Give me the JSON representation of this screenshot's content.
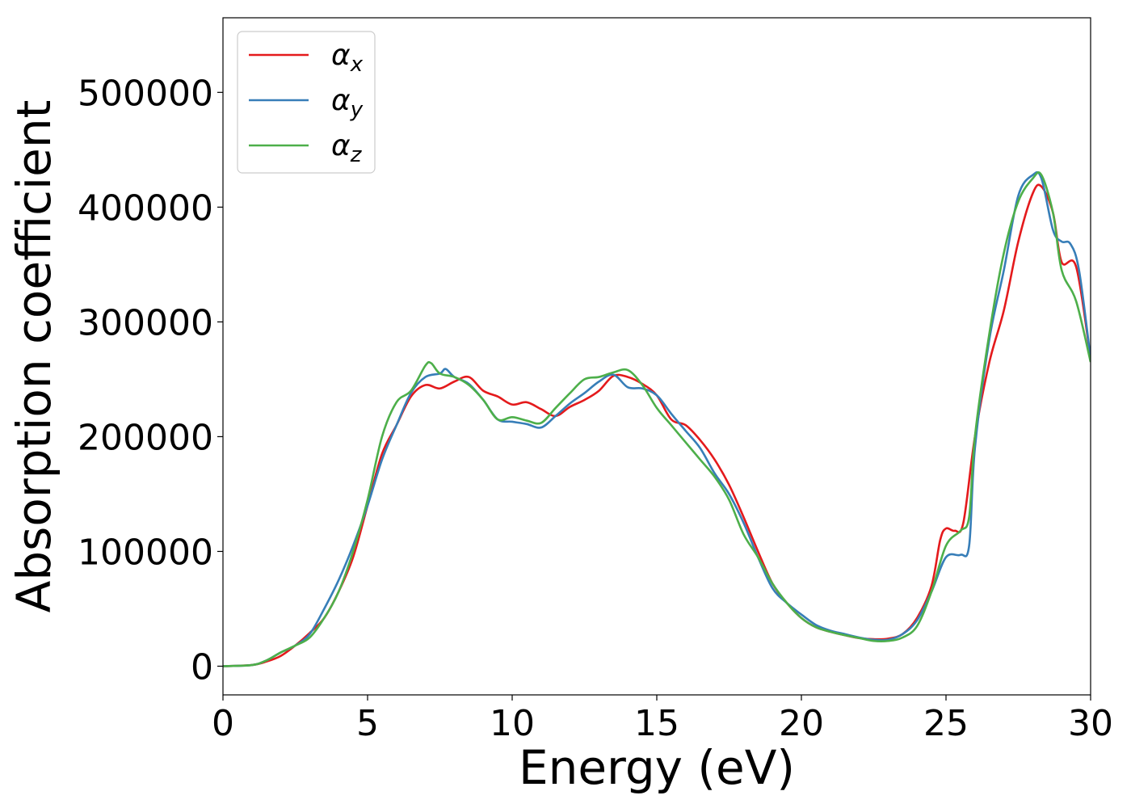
{
  "chart_data": {
    "type": "line",
    "xlabel": "Energy (eV)",
    "ylabel": "Absorption coefficient",
    "xlim": [
      0,
      30
    ],
    "ylim": [
      -25000,
      565000
    ],
    "xticks": [
      0,
      5,
      10,
      15,
      20,
      25,
      30
    ],
    "yticks": [
      0,
      100000,
      200000,
      300000,
      400000,
      500000
    ],
    "grid": false,
    "legend_position": "top-left",
    "series": [
      {
        "name": "x",
        "color": "#e41a1c",
        "points": [
          [
            0,
            0
          ],
          [
            1,
            1000
          ],
          [
            1.5,
            4000
          ],
          [
            2,
            9000
          ],
          [
            2.5,
            18000
          ],
          [
            3,
            29000
          ],
          [
            3.5,
            42000
          ],
          [
            4,
            65000
          ],
          [
            4.5,
            95000
          ],
          [
            5,
            140000
          ],
          [
            5.5,
            185000
          ],
          [
            6,
            210000
          ],
          [
            6.5,
            235000
          ],
          [
            7,
            245000
          ],
          [
            7.5,
            242000
          ],
          [
            8,
            248000
          ],
          [
            8.5,
            252000
          ],
          [
            9,
            240000
          ],
          [
            9.5,
            235000
          ],
          [
            10,
            228000
          ],
          [
            10.5,
            230000
          ],
          [
            11,
            224000
          ],
          [
            11.5,
            218000
          ],
          [
            12,
            226000
          ],
          [
            12.5,
            232000
          ],
          [
            13,
            240000
          ],
          [
            13.5,
            253000
          ],
          [
            14,
            252000
          ],
          [
            14.5,
            246000
          ],
          [
            15,
            236000
          ],
          [
            15.5,
            215000
          ],
          [
            16,
            210000
          ],
          [
            16.5,
            197000
          ],
          [
            17,
            180000
          ],
          [
            17.5,
            158000
          ],
          [
            18,
            130000
          ],
          [
            18.5,
            100000
          ],
          [
            19,
            72000
          ],
          [
            19.5,
            55000
          ],
          [
            20,
            42000
          ],
          [
            20.5,
            34000
          ],
          [
            21,
            30000
          ],
          [
            21.5,
            27000
          ],
          [
            22,
            24500
          ],
          [
            22.5,
            23500
          ],
          [
            23,
            24000
          ],
          [
            23.5,
            28000
          ],
          [
            24,
            42000
          ],
          [
            24.5,
            70000
          ],
          [
            24.8,
            110000
          ],
          [
            25,
            120000
          ],
          [
            25.3,
            118000
          ],
          [
            25.6,
            125000
          ],
          [
            26,
            200000
          ],
          [
            26.5,
            265000
          ],
          [
            27,
            310000
          ],
          [
            27.5,
            370000
          ],
          [
            28,
            412000
          ],
          [
            28.3,
            418000
          ],
          [
            28.7,
            395000
          ],
          [
            29,
            352000
          ],
          [
            29.5,
            348000
          ],
          [
            30,
            268000
          ]
        ]
      },
      {
        "name": "y",
        "color": "#377eb8",
        "points": [
          [
            0,
            0
          ],
          [
            1,
            1000
          ],
          [
            1.5,
            5000
          ],
          [
            2,
            12000
          ],
          [
            2.5,
            18000
          ],
          [
            3,
            28000
          ],
          [
            3.5,
            50000
          ],
          [
            4,
            75000
          ],
          [
            4.5,
            105000
          ],
          [
            5,
            140000
          ],
          [
            5.5,
            180000
          ],
          [
            6,
            210000
          ],
          [
            6.5,
            238000
          ],
          [
            7,
            252000
          ],
          [
            7.5,
            255000
          ],
          [
            7.7,
            259000
          ],
          [
            8,
            252000
          ],
          [
            8.5,
            246000
          ],
          [
            9,
            232000
          ],
          [
            9.5,
            215000
          ],
          [
            10,
            213000
          ],
          [
            10.5,
            211000
          ],
          [
            11,
            208000
          ],
          [
            11.5,
            218000
          ],
          [
            12,
            229000
          ],
          [
            12.5,
            238000
          ],
          [
            13,
            248000
          ],
          [
            13.5,
            254000
          ],
          [
            14,
            243000
          ],
          [
            14.5,
            242000
          ],
          [
            15,
            236000
          ],
          [
            15.5,
            220000
          ],
          [
            16,
            205000
          ],
          [
            16.5,
            190000
          ],
          [
            17,
            168000
          ],
          [
            17.5,
            150000
          ],
          [
            18,
            125000
          ],
          [
            18.5,
            95000
          ],
          [
            19,
            68000
          ],
          [
            19.5,
            55000
          ],
          [
            20,
            45000
          ],
          [
            20.5,
            36000
          ],
          [
            21,
            31000
          ],
          [
            21.5,
            28000
          ],
          [
            22,
            25000
          ],
          [
            22.5,
            23000
          ],
          [
            23,
            23000
          ],
          [
            23.5,
            28000
          ],
          [
            24,
            40000
          ],
          [
            24.5,
            65000
          ],
          [
            25,
            95000
          ],
          [
            25.5,
            97000
          ],
          [
            25.8,
            105000
          ],
          [
            26,
            190000
          ],
          [
            26.5,
            285000
          ],
          [
            27,
            345000
          ],
          [
            27.5,
            410000
          ],
          [
            28,
            428000
          ],
          [
            28.3,
            425000
          ],
          [
            28.7,
            380000
          ],
          [
            29,
            370000
          ],
          [
            29.3,
            368000
          ],
          [
            29.6,
            345000
          ],
          [
            30,
            268000
          ]
        ]
      },
      {
        "name": "z",
        "color": "#4daf4a",
        "points": [
          [
            0,
            0
          ],
          [
            1,
            1000
          ],
          [
            1.5,
            5000
          ],
          [
            2,
            12000
          ],
          [
            2.5,
            18000
          ],
          [
            3,
            25000
          ],
          [
            3.5,
            42000
          ],
          [
            4,
            65000
          ],
          [
            4.5,
            100000
          ],
          [
            5,
            145000
          ],
          [
            5.5,
            200000
          ],
          [
            6,
            230000
          ],
          [
            6.5,
            240000
          ],
          [
            7,
            262000
          ],
          [
            7.2,
            264000
          ],
          [
            7.5,
            255000
          ],
          [
            8,
            252000
          ],
          [
            8.5,
            245000
          ],
          [
            9,
            232000
          ],
          [
            9.5,
            215000
          ],
          [
            10,
            217000
          ],
          [
            10.5,
            214000
          ],
          [
            11,
            212000
          ],
          [
            11.5,
            225000
          ],
          [
            12,
            238000
          ],
          [
            12.5,
            250000
          ],
          [
            13,
            252000
          ],
          [
            13.5,
            256000
          ],
          [
            14,
            258000
          ],
          [
            14.5,
            245000
          ],
          [
            15,
            225000
          ],
          [
            15.5,
            210000
          ],
          [
            16,
            195000
          ],
          [
            16.5,
            180000
          ],
          [
            17,
            165000
          ],
          [
            17.5,
            145000
          ],
          [
            18,
            115000
          ],
          [
            18.5,
            95000
          ],
          [
            19,
            72000
          ],
          [
            19.5,
            55000
          ],
          [
            20,
            42000
          ],
          [
            20.5,
            34000
          ],
          [
            21,
            30000
          ],
          [
            21.5,
            27000
          ],
          [
            22,
            24500
          ],
          [
            22.5,
            22000
          ],
          [
            23,
            22000
          ],
          [
            23.5,
            25000
          ],
          [
            24,
            35000
          ],
          [
            24.5,
            65000
          ],
          [
            25,
            105000
          ],
          [
            25.5,
            118000
          ],
          [
            25.8,
            130000
          ],
          [
            26,
            200000
          ],
          [
            26.5,
            290000
          ],
          [
            27,
            360000
          ],
          [
            27.5,
            405000
          ],
          [
            28,
            425000
          ],
          [
            28.3,
            428000
          ],
          [
            28.7,
            395000
          ],
          [
            29,
            345000
          ],
          [
            29.5,
            318000
          ],
          [
            30,
            265000
          ]
        ]
      }
    ]
  }
}
